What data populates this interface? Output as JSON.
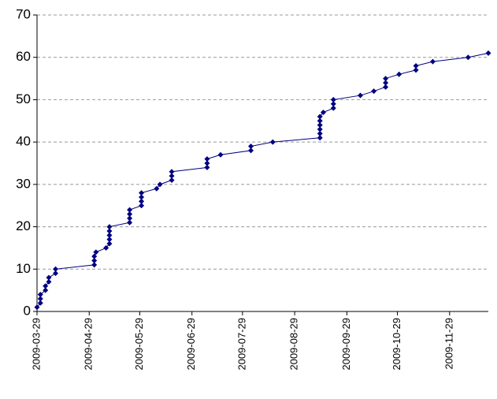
{
  "chart_data": {
    "type": "line",
    "color": "#000080",
    "x": [
      "2009-03-29",
      "2009-03-31",
      "2009-03-31",
      "2009-03-31",
      "2009-04-03",
      "2009-04-03",
      "2009-04-05",
      "2009-04-05",
      "2009-04-09",
      "2009-04-09",
      "2009-05-02",
      "2009-05-02",
      "2009-05-02",
      "2009-05-03",
      "2009-05-09",
      "2009-05-11",
      "2009-05-11",
      "2009-05-11",
      "2009-05-11",
      "2009-05-11",
      "2009-05-23",
      "2009-05-23",
      "2009-05-23",
      "2009-05-23",
      "2009-05-30",
      "2009-05-30",
      "2009-05-30",
      "2009-05-30",
      "2009-06-08",
      "2009-06-10",
      "2009-06-17",
      "2009-06-17",
      "2009-06-17",
      "2009-07-08",
      "2009-07-08",
      "2009-07-08",
      "2009-07-16",
      "2009-08-03",
      "2009-08-03",
      "2009-08-16",
      "2009-09-13",
      "2009-09-13",
      "2009-09-13",
      "2009-09-13",
      "2009-09-13",
      "2009-09-13",
      "2009-09-15",
      "2009-09-21",
      "2009-09-21",
      "2009-09-21",
      "2009-10-07",
      "2009-10-15",
      "2009-10-22",
      "2009-10-22",
      "2009-10-22",
      "2009-10-30",
      "2009-11-09",
      "2009-11-09",
      "2009-11-19",
      "2009-12-10",
      "2009-12-22"
    ],
    "values": [
      1,
      2,
      3,
      4,
      5,
      6,
      7,
      8,
      9,
      10,
      11,
      12,
      13,
      14,
      15,
      16,
      17,
      18,
      19,
      20,
      21,
      22,
      23,
      24,
      25,
      26,
      27,
      28,
      29,
      30,
      31,
      32,
      33,
      34,
      35,
      36,
      37,
      38,
      39,
      40,
      41,
      42,
      43,
      44,
      45,
      46,
      47,
      48,
      49,
      50,
      51,
      52,
      53,
      54,
      55,
      56,
      57,
      58,
      59,
      60,
      61
    ],
    "xlim": [
      "2009-03-29",
      "2009-12-22"
    ],
    "xticks": [
      "2009-03-29",
      "2009-04-29",
      "2009-05-29",
      "2009-06-29",
      "2009-07-29",
      "2009-08-29",
      "2009-09-29",
      "2009-10-29",
      "2009-11-29"
    ],
    "ylim": [
      0,
      70
    ],
    "yticks": [
      0,
      10,
      20,
      30,
      40,
      50,
      60,
      70
    ],
    "grid": true
  }
}
